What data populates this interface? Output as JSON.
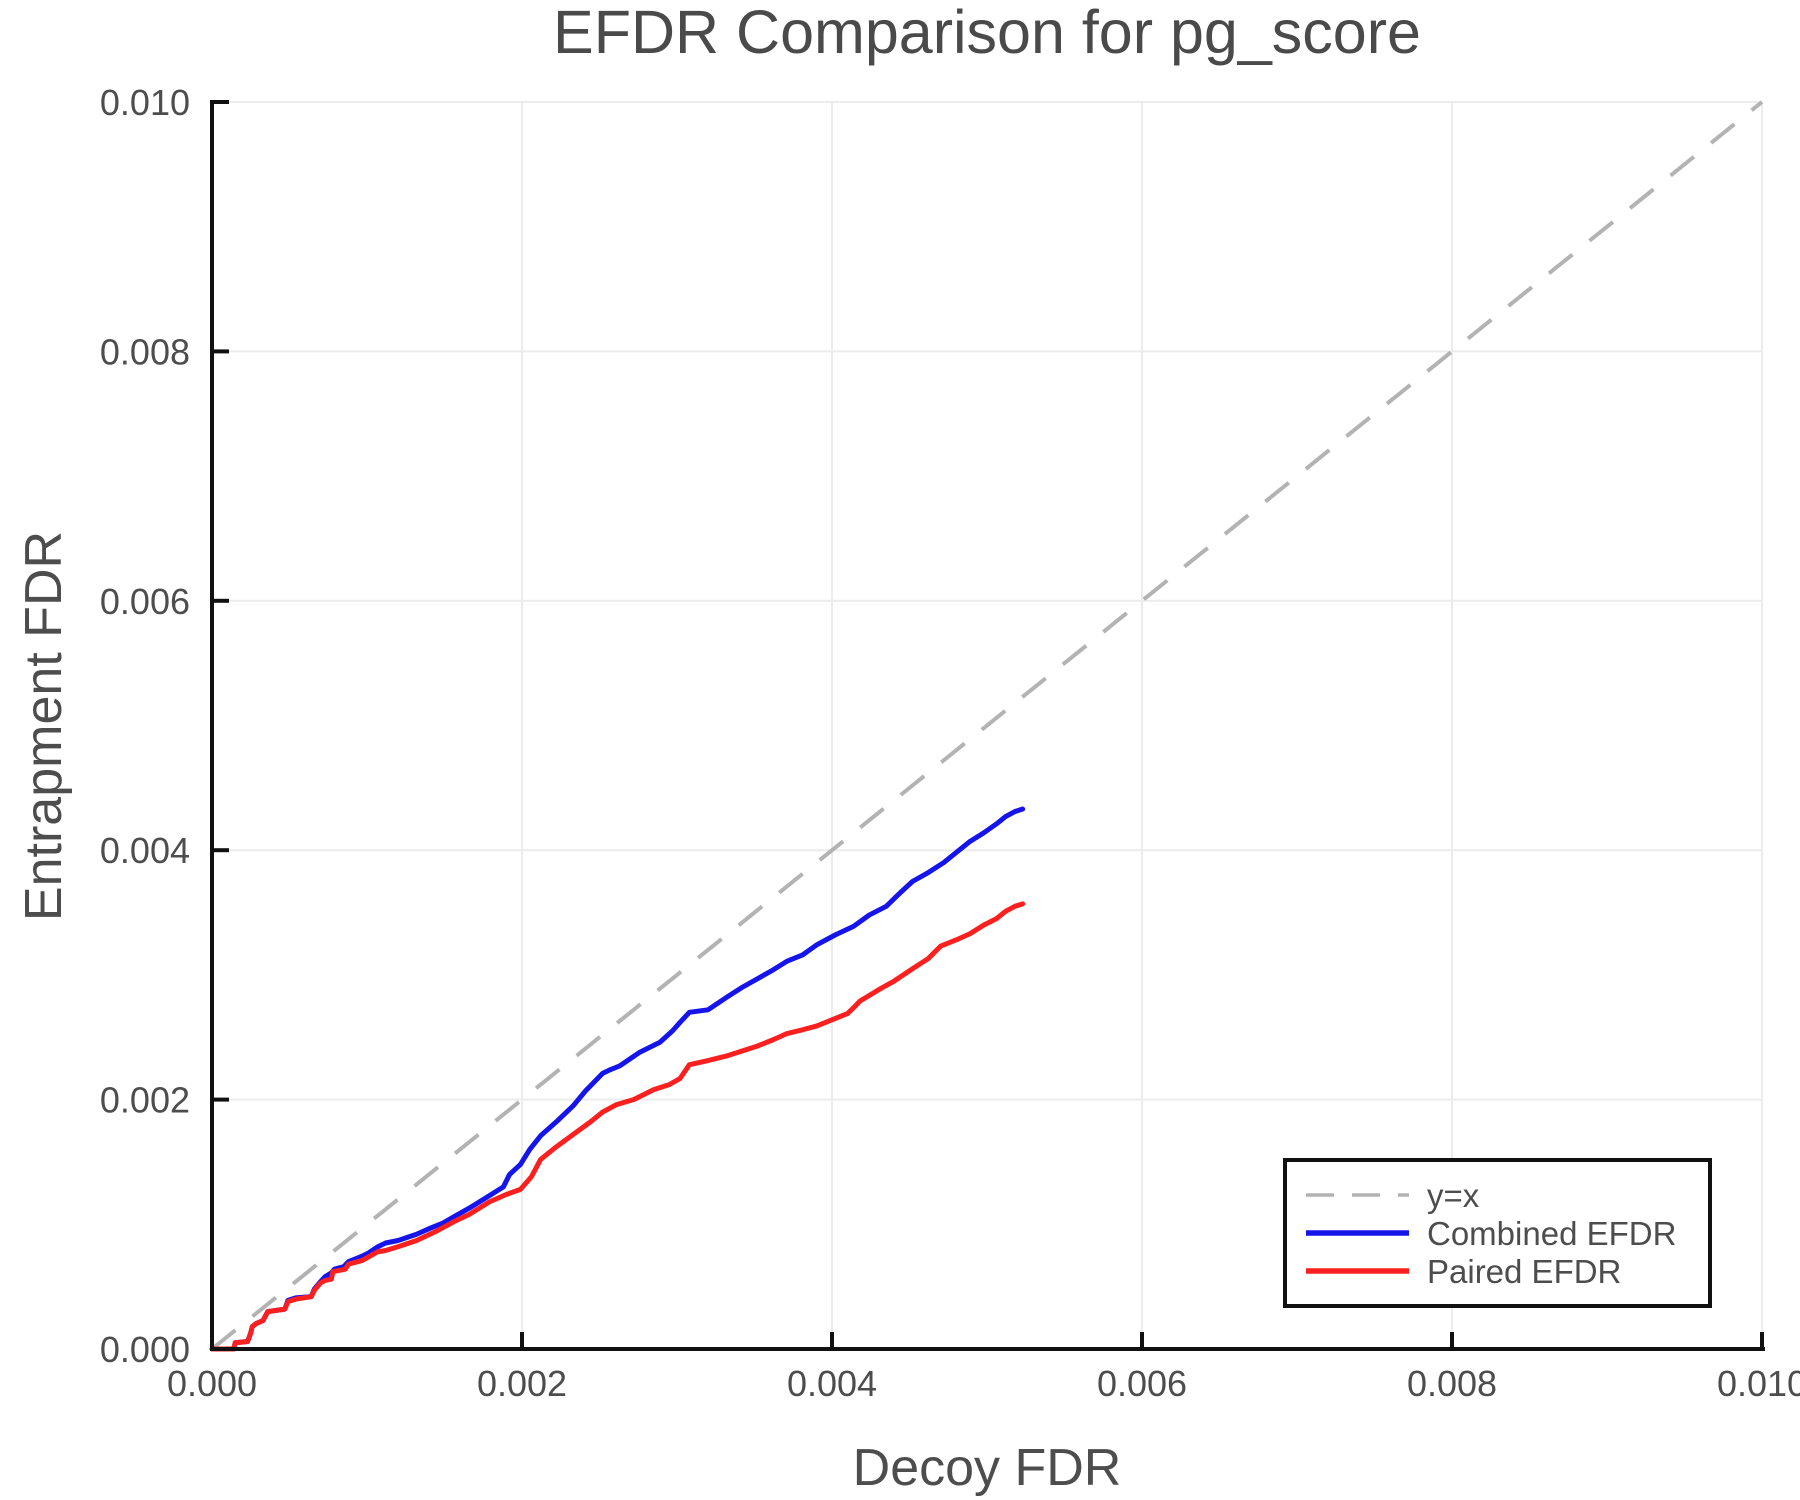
{
  "chart_data": {
    "type": "line",
    "title": "EFDR Comparison for pg_score",
    "xlabel": "Decoy FDR",
    "ylabel": "Entrapment FDR",
    "xlim": [
      0.0,
      0.01
    ],
    "ylim": [
      0.0,
      0.01
    ],
    "grid": true,
    "legend_position": "lower right",
    "x_tick_values": [
      0.0,
      0.002,
      0.004,
      0.006,
      0.008,
      0.01
    ],
    "x_tick_labels": [
      "0.000",
      "0.002",
      "0.004",
      "0.006",
      "0.008",
      "0.010"
    ],
    "y_tick_values": [
      0.0,
      0.002,
      0.004,
      0.006,
      0.008,
      0.01
    ],
    "y_tick_labels": [
      "0.000",
      "0.002",
      "0.004",
      "0.006",
      "0.008",
      "0.010"
    ],
    "reference_line": {
      "name": "y=x",
      "style": "dashed",
      "color": "#b3b3b3",
      "points": [
        [
          0.0,
          0.0
        ],
        [
          0.01,
          0.01
        ]
      ]
    },
    "series": [
      {
        "name": "Combined EFDR",
        "color": "#1515eb",
        "points": [
          [
            0.0,
            0.0
          ],
          [
            0.00014,
            0.0
          ],
          [
            0.00015,
            5e-05
          ],
          [
            0.00023,
            6e-05
          ],
          [
            0.00025,
            0.00013
          ],
          [
            0.00026,
            0.00018
          ],
          [
            0.00028,
            0.0002
          ],
          [
            0.00033,
            0.00023
          ],
          [
            0.00036,
            0.0003
          ],
          [
            0.00047,
            0.00032
          ],
          [
            0.00049,
            0.00039
          ],
          [
            0.00054,
            0.00041
          ],
          [
            0.00064,
            0.00042
          ],
          [
            0.00066,
            0.00048
          ],
          [
            0.0007,
            0.00054
          ],
          [
            0.00073,
            0.00058
          ],
          [
            0.00077,
            0.00061
          ],
          [
            0.00079,
            0.00064
          ],
          [
            0.00085,
            0.00066
          ],
          [
            0.00088,
            0.0007
          ],
          [
            0.00096,
            0.00074
          ],
          [
            0.00101,
            0.00077
          ],
          [
            0.00107,
            0.00082
          ],
          [
            0.00112,
            0.00085
          ],
          [
            0.0012,
            0.00087
          ],
          [
            0.00132,
            0.00092
          ],
          [
            0.00141,
            0.00097
          ],
          [
            0.00149,
            0.00101
          ],
          [
            0.00156,
            0.00106
          ],
          [
            0.00166,
            0.00113
          ],
          [
            0.00179,
            0.00123
          ],
          [
            0.00188,
            0.0013
          ],
          [
            0.00192,
            0.0014
          ],
          [
            0.00199,
            0.00148
          ],
          [
            0.00205,
            0.0016
          ],
          [
            0.00212,
            0.00171
          ],
          [
            0.00222,
            0.00182
          ],
          [
            0.00233,
            0.00195
          ],
          [
            0.00241,
            0.00207
          ],
          [
            0.00252,
            0.00221
          ],
          [
            0.00257,
            0.00224
          ],
          [
            0.00263,
            0.00227
          ],
          [
            0.00276,
            0.00238
          ],
          [
            0.00289,
            0.00246
          ],
          [
            0.00297,
            0.00255
          ],
          [
            0.00302,
            0.00262
          ],
          [
            0.00308,
            0.0027
          ],
          [
            0.0032,
            0.00272
          ],
          [
            0.00332,
            0.00282
          ],
          [
            0.00342,
            0.0029
          ],
          [
            0.00352,
            0.00297
          ],
          [
            0.00362,
            0.00304
          ],
          [
            0.00371,
            0.00311
          ],
          [
            0.00381,
            0.00316
          ],
          [
            0.0039,
            0.00324
          ],
          [
            0.00402,
            0.00332
          ],
          [
            0.00414,
            0.00339
          ],
          [
            0.00424,
            0.00348
          ],
          [
            0.00435,
            0.00355
          ],
          [
            0.00445,
            0.00367
          ],
          [
            0.00452,
            0.00375
          ],
          [
            0.00462,
            0.00382
          ],
          [
            0.00472,
            0.0039
          ],
          [
            0.00481,
            0.00399
          ],
          [
            0.00489,
            0.00407
          ],
          [
            0.00498,
            0.00414
          ],
          [
            0.00506,
            0.00421
          ],
          [
            0.00512,
            0.00427
          ],
          [
            0.00518,
            0.00431
          ],
          [
            0.00523,
            0.00433
          ]
        ]
      },
      {
        "name": "Paired EFDR",
        "color": "#fb2020",
        "points": [
          [
            0.0,
            0.0
          ],
          [
            0.00014,
            0.0
          ],
          [
            0.00015,
            5e-05
          ],
          [
            0.00023,
            6e-05
          ],
          [
            0.00025,
            0.00013
          ],
          [
            0.00026,
            0.00018
          ],
          [
            0.00028,
            0.0002
          ],
          [
            0.00033,
            0.00023
          ],
          [
            0.00036,
            0.0003
          ],
          [
            0.00047,
            0.00032
          ],
          [
            0.00049,
            0.00038
          ],
          [
            0.00054,
            0.0004
          ],
          [
            0.00064,
            0.00042
          ],
          [
            0.00066,
            0.00047
          ],
          [
            0.0007,
            0.00053
          ],
          [
            0.00073,
            0.00055
          ],
          [
            0.00077,
            0.00056
          ],
          [
            0.00078,
            0.00062
          ],
          [
            0.00086,
            0.00064
          ],
          [
            0.00088,
            0.00068
          ],
          [
            0.00097,
            0.00071
          ],
          [
            0.00107,
            0.00078
          ],
          [
            0.00112,
            0.00079
          ],
          [
            0.0012,
            0.00082
          ],
          [
            0.00132,
            0.00087
          ],
          [
            0.00144,
            0.00094
          ],
          [
            0.00156,
            0.00102
          ],
          [
            0.00166,
            0.00108
          ],
          [
            0.00179,
            0.00118
          ],
          [
            0.0019,
            0.00124
          ],
          [
            0.00199,
            0.00128
          ],
          [
            0.00206,
            0.00138
          ],
          [
            0.00212,
            0.00152
          ],
          [
            0.00222,
            0.00162
          ],
          [
            0.00233,
            0.00172
          ],
          [
            0.00244,
            0.00182
          ],
          [
            0.00252,
            0.0019
          ],
          [
            0.00261,
            0.00196
          ],
          [
            0.00272,
            0.002
          ],
          [
            0.00285,
            0.00208
          ],
          [
            0.00295,
            0.00212
          ],
          [
            0.00302,
            0.00217
          ],
          [
            0.00308,
            0.00228
          ],
          [
            0.00319,
            0.00231
          ],
          [
            0.00332,
            0.00235
          ],
          [
            0.00342,
            0.00239
          ],
          [
            0.00352,
            0.00243
          ],
          [
            0.00362,
            0.00248
          ],
          [
            0.00371,
            0.00253
          ],
          [
            0.00381,
            0.00256
          ],
          [
            0.0039,
            0.00259
          ],
          [
            0.004,
            0.00264
          ],
          [
            0.0041,
            0.00269
          ],
          [
            0.00415,
            0.00275
          ],
          [
            0.00418,
            0.00279
          ],
          [
            0.0043,
            0.00288
          ],
          [
            0.0044,
            0.00295
          ],
          [
            0.00452,
            0.00305
          ],
          [
            0.00462,
            0.00313
          ],
          [
            0.0047,
            0.00323
          ],
          [
            0.0048,
            0.00328
          ],
          [
            0.00489,
            0.00333
          ],
          [
            0.00498,
            0.0034
          ],
          [
            0.00506,
            0.00345
          ],
          [
            0.00512,
            0.00351
          ],
          [
            0.00518,
            0.00355
          ],
          [
            0.00523,
            0.00357
          ]
        ]
      }
    ]
  },
  "colors": {
    "background": "#ffffff",
    "axis": "#111111",
    "grid": "#ececec",
    "text": "#4d4d4d",
    "title_text": "#4a4a4a",
    "legend_border": "#111111"
  }
}
